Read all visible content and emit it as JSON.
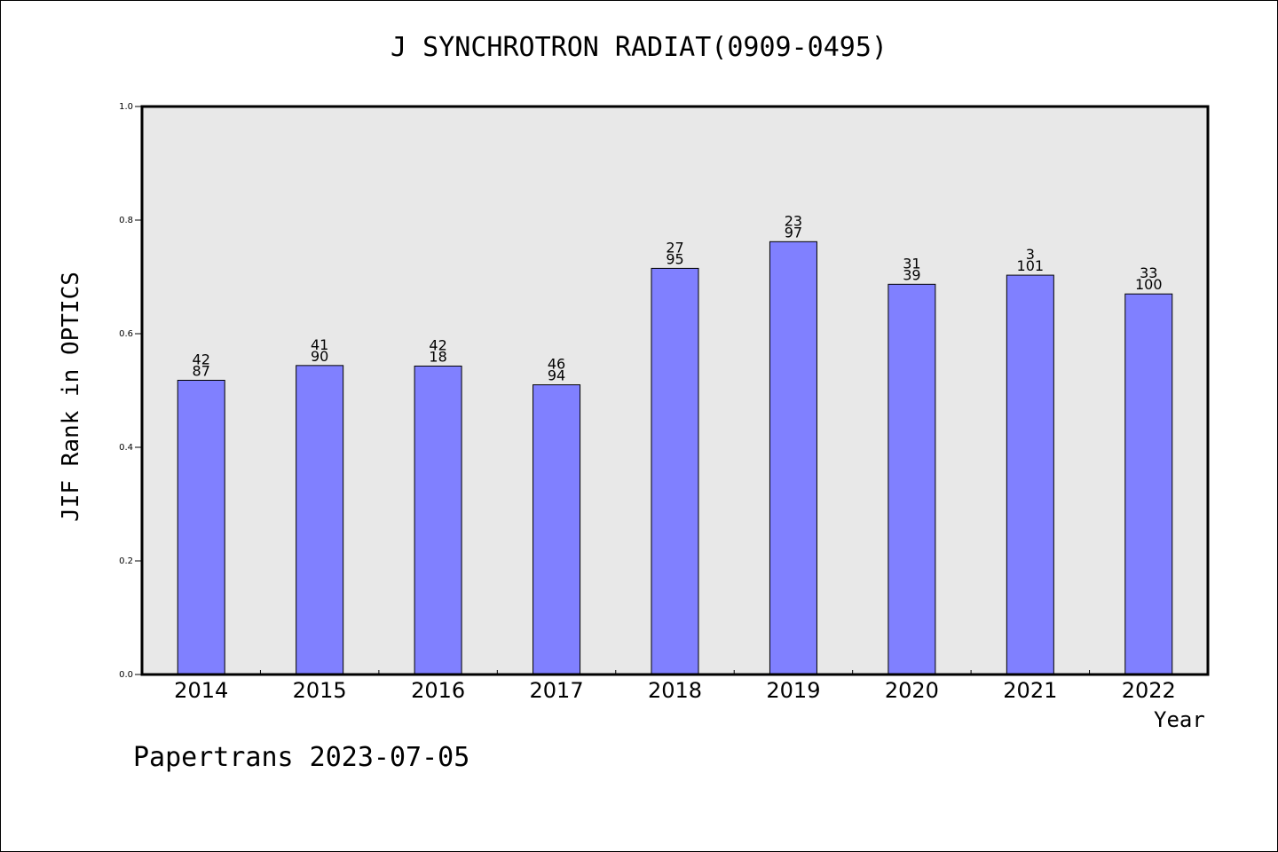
{
  "chart_data": {
    "type": "bar",
    "title": "J SYNCHROTRON RADIAT(0909-0495)",
    "ylabel": "JIF Rank in OPTICS",
    "xlabel": "Year",
    "ylim": [
      0,
      1.0
    ],
    "yticks": [
      "0.0",
      "0.2",
      "0.4",
      "0.6",
      "0.8",
      "1.0"
    ],
    "categories": [
      "2014",
      "2015",
      "2016",
      "2017",
      "2018",
      "2019",
      "2020",
      "2021",
      "2022"
    ],
    "values": [
      0.518,
      0.544,
      0.543,
      0.51,
      0.715,
      0.762,
      0.687,
      0.703,
      0.67
    ],
    "bar_labels_top": [
      "42",
      "41",
      "42",
      "46",
      "27",
      "23",
      "31",
      "3",
      "33"
    ],
    "bar_labels_bottom": [
      "87",
      "90",
      "18",
      "94",
      "95",
      "97",
      "39",
      "101",
      "100"
    ],
    "bar_color": "#8080ff",
    "plot_background": "#e8e8e8",
    "grid": false
  },
  "footer": "Papertrans 2023-07-05"
}
